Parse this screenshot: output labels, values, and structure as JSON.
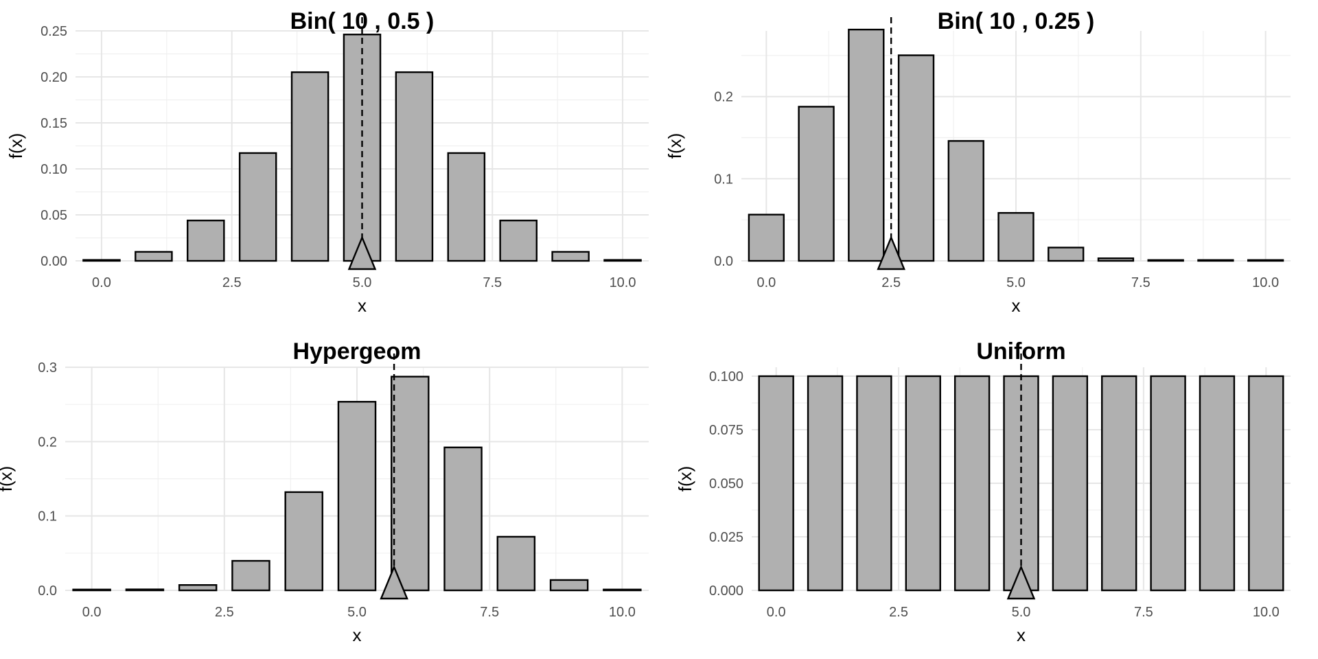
{
  "chart_data": [
    {
      "type": "bar",
      "title": "Bin( 10 , 0.5 )",
      "xlabel": "x",
      "ylabel": "f(x)",
      "x": [
        0,
        1,
        2,
        3,
        4,
        5,
        6,
        7,
        8,
        9,
        10
      ],
      "values": [
        0.001,
        0.0098,
        0.0439,
        0.1172,
        0.2051,
        0.2461,
        0.2051,
        0.1172,
        0.0439,
        0.0098,
        0.001
      ],
      "mean_marker_x": 5.0,
      "xlim": [
        -0.5,
        10.5
      ],
      "ylim": [
        0,
        0.25
      ],
      "x_ticks": [
        0,
        2.5,
        5,
        7.5,
        10
      ],
      "x_tick_labels": [
        "0.0",
        "2.5",
        "5.0",
        "7.5",
        "10.0"
      ],
      "y_ticks": [
        0,
        0.05,
        0.1,
        0.15,
        0.2,
        0.25
      ],
      "y_tick_labels": [
        "0.00",
        "0.05",
        "0.10",
        "0.15",
        "0.20",
        "0.25"
      ],
      "grid": true
    },
    {
      "type": "bar",
      "title": "Bin( 10 , 0.25 )",
      "xlabel": "x",
      "ylabel": "f(x)",
      "x": [
        0,
        1,
        2,
        3,
        4,
        5,
        6,
        7,
        8,
        9,
        10
      ],
      "values": [
        0.0563,
        0.1877,
        0.2816,
        0.2503,
        0.146,
        0.0584,
        0.0162,
        0.0031,
        0.0004,
        3e-05,
        1e-06
      ],
      "mean_marker_x": 2.5,
      "xlim": [
        -0.5,
        10.5
      ],
      "ylim": [
        0,
        0.28
      ],
      "x_ticks": [
        0,
        2.5,
        5,
        7.5,
        10
      ],
      "x_tick_labels": [
        "0.0",
        "2.5",
        "5.0",
        "7.5",
        "10.0"
      ],
      "y_ticks": [
        0,
        0.1,
        0.2
      ],
      "y_tick_labels": [
        "0.0",
        "0.1",
        "0.2"
      ],
      "grid": true
    },
    {
      "type": "bar",
      "title": "Hypergeom",
      "xlabel": "x",
      "ylabel": "f(x)",
      "x": [
        0,
        1,
        2,
        3,
        4,
        5,
        6,
        7,
        8,
        9,
        10
      ],
      "values": [
        0.0002,
        0.0013,
        0.0072,
        0.0397,
        0.1321,
        0.2536,
        0.2874,
        0.1922,
        0.0721,
        0.0139,
        0.0011
      ],
      "mean_marker_x": 5.7,
      "xlim": [
        -0.5,
        10.5
      ],
      "ylim": [
        0,
        0.3
      ],
      "x_ticks": [
        0,
        2.5,
        5,
        7.5,
        10
      ],
      "x_tick_labels": [
        "0.0",
        "2.5",
        "5.0",
        "7.5",
        "10.0"
      ],
      "y_ticks": [
        0,
        0.1,
        0.2,
        0.3
      ],
      "y_tick_labels": [
        "0.0",
        "0.1",
        "0.2",
        "0.3"
      ],
      "grid": true
    },
    {
      "type": "bar",
      "title": "Uniform",
      "xlabel": "x",
      "ylabel": "f(x)",
      "x": [
        0,
        1,
        2,
        3,
        4,
        5,
        6,
        7,
        8,
        9,
        10
      ],
      "values": [
        0.1,
        0.1,
        0.1,
        0.1,
        0.1,
        0.1,
        0.1,
        0.1,
        0.1,
        0.1,
        0.1
      ],
      "mean_marker_x": 5.0,
      "xlim": [
        -0.5,
        10.5
      ],
      "ylim": [
        0,
        0.1
      ],
      "x_ticks": [
        0,
        2.5,
        5,
        7.5,
        10
      ],
      "x_tick_labels": [
        "0.0",
        "2.5",
        "5.0",
        "7.5",
        "10.0"
      ],
      "y_ticks": [
        0,
        0.025,
        0.05,
        0.075,
        0.1
      ],
      "y_tick_labels": [
        "0.000",
        "0.025",
        "0.050",
        "0.075",
        "0.100"
      ],
      "grid": true
    }
  ]
}
